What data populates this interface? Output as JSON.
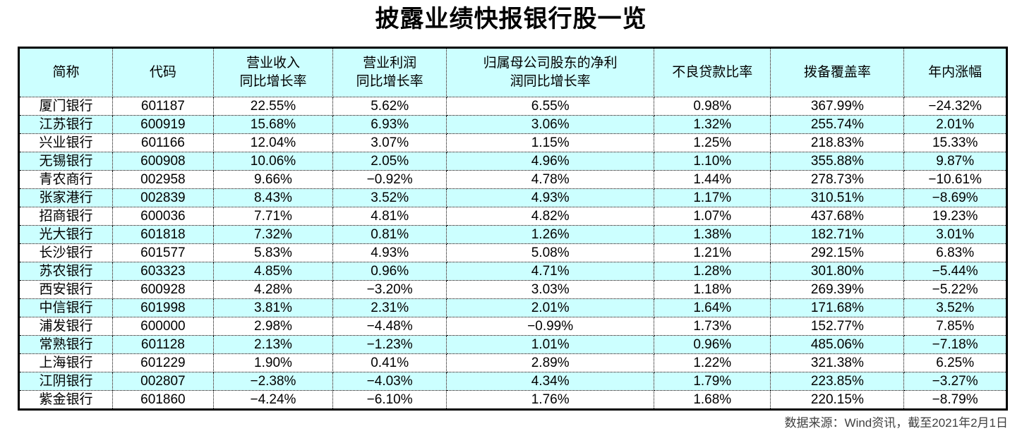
{
  "title": "披露业绩快报银行股一览",
  "footer": {
    "source_note": "数据来源：Wind资讯，截至2021年2月1日"
  },
  "colors": {
    "header_bg": "#CCFFFF",
    "stripe_bg": "#CCFFFF",
    "border": "#000000",
    "footer_text": "#404040"
  },
  "chart_data": {
    "type": "table",
    "title": "披露业绩快报银行股一览",
    "columns": [
      "简称",
      "代码",
      "营业收入\n同比增长率",
      "营业利润\n同比增长率",
      "归属母公司股东的净利\n润同比增长率",
      "不良贷款比率",
      "拨备覆盖率",
      "年内涨幅"
    ],
    "column_keys": [
      "name",
      "code",
      "revenue-yoy",
      "op-profit-yoy",
      "net-profit-yoy",
      "npl-ratio",
      "provision-coverage",
      "ytd-change"
    ],
    "rows": [
      [
        "厦门银行",
        "601187",
        "22.55%",
        "5.62%",
        "6.55%",
        "0.98%",
        "367.99%",
        "−24.32%"
      ],
      [
        "江苏银行",
        "600919",
        "15.68%",
        "6.93%",
        "3.06%",
        "1.32%",
        "255.74%",
        "2.01%"
      ],
      [
        "兴业银行",
        "601166",
        "12.04%",
        "3.07%",
        "1.15%",
        "1.25%",
        "218.83%",
        "15.33%"
      ],
      [
        "无锡银行",
        "600908",
        "10.06%",
        "2.05%",
        "4.96%",
        "1.10%",
        "355.88%",
        "9.87%"
      ],
      [
        "青农商行",
        "002958",
        "9.66%",
        "−0.92%",
        "4.78%",
        "1.44%",
        "278.73%",
        "−10.61%"
      ],
      [
        "张家港行",
        "002839",
        "8.43%",
        "3.52%",
        "4.93%",
        "1.17%",
        "310.51%",
        "−8.69%"
      ],
      [
        "招商银行",
        "600036",
        "7.71%",
        "4.81%",
        "4.82%",
        "1.07%",
        "437.68%",
        "19.23%"
      ],
      [
        "光大银行",
        "601818",
        "7.32%",
        "0.81%",
        "1.26%",
        "1.38%",
        "182.71%",
        "3.01%"
      ],
      [
        "长沙银行",
        "601577",
        "5.83%",
        "4.93%",
        "5.08%",
        "1.21%",
        "292.15%",
        "6.83%"
      ],
      [
        "苏农银行",
        "603323",
        "4.85%",
        "0.96%",
        "4.71%",
        "1.28%",
        "301.80%",
        "−5.44%"
      ],
      [
        "西安银行",
        "600928",
        "4.28%",
        "−3.20%",
        "3.03%",
        "1.18%",
        "269.39%",
        "−5.22%"
      ],
      [
        "中信银行",
        "601998",
        "3.81%",
        "2.31%",
        "2.01%",
        "1.64%",
        "171.68%",
        "3.52%"
      ],
      [
        "浦发银行",
        "600000",
        "2.98%",
        "−4.48%",
        "−0.99%",
        "1.73%",
        "152.77%",
        "7.85%"
      ],
      [
        "常熟银行",
        "601128",
        "2.13%",
        "−1.23%",
        "1.01%",
        "0.96%",
        "485.06%",
        "−7.18%"
      ],
      [
        "上海银行",
        "601229",
        "1.90%",
        "0.41%",
        "2.89%",
        "1.22%",
        "321.38%",
        "6.25%"
      ],
      [
        "江阴银行",
        "002807",
        "−2.38%",
        "−4.03%",
        "4.34%",
        "1.79%",
        "223.85%",
        "−3.27%"
      ],
      [
        "紫金银行",
        "601860",
        "−4.24%",
        "−6.10%",
        "1.76%",
        "1.68%",
        "220.15%",
        "−8.79%"
      ]
    ]
  }
}
